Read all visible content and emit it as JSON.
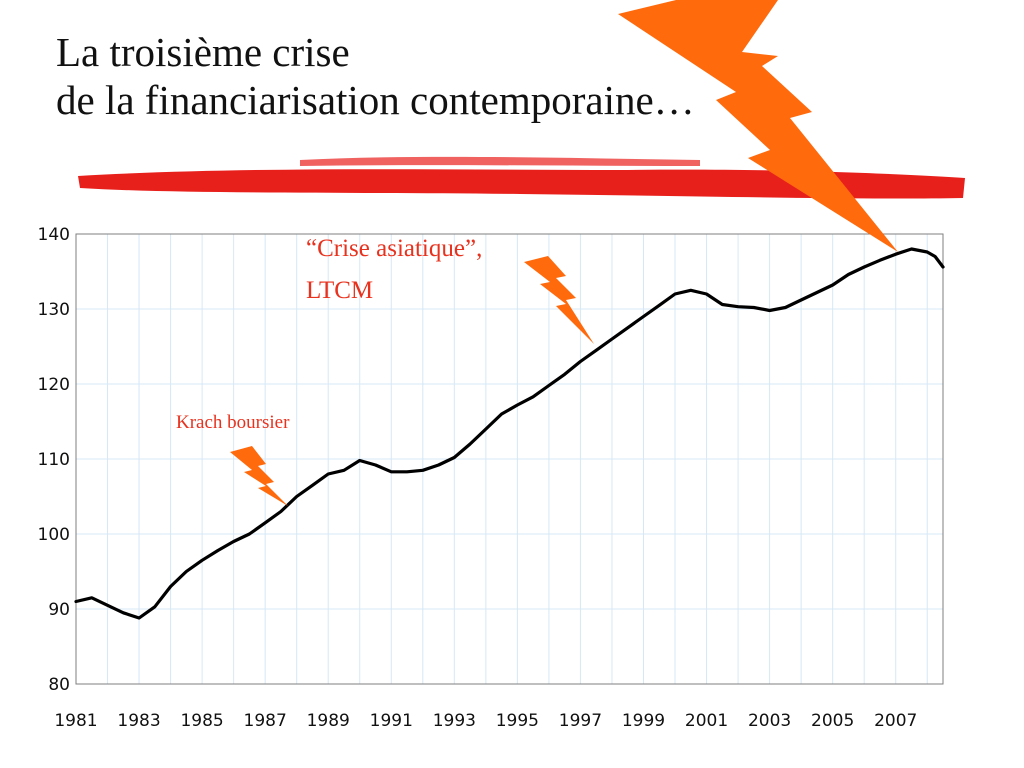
{
  "slide": {
    "title_line1": "La troisième crise",
    "title_line2": "de la financiarisation contemporaine…"
  },
  "colors": {
    "title": "#111111",
    "brush_stroke": "#e8201c",
    "lightning": "#ff6a0d",
    "annotation": "#e8321e",
    "line": "#000000",
    "grid": "#d6e8f6"
  },
  "icons": [
    "big-lightning-bolt-icon",
    "small-lightning-bolt-icon"
  ],
  "chart_data": {
    "type": "line",
    "title": "",
    "xlabel": "",
    "ylabel": "",
    "ylim": [
      80,
      140
    ],
    "yticks": [
      80,
      90,
      100,
      110,
      120,
      130,
      140
    ],
    "xlim": [
      1981,
      2008.5
    ],
    "xtick_labels": [
      "1981",
      "1983",
      "1985",
      "1987",
      "1989",
      "1991",
      "1993",
      "1995",
      "1997",
      "1999",
      "2001",
      "2003",
      "2005",
      "2007"
    ],
    "grid": true,
    "legend": "none",
    "x": [
      1981.0,
      1981.5,
      1982.0,
      1982.5,
      1983.0,
      1983.5,
      1984.0,
      1984.5,
      1985.0,
      1985.5,
      1986.0,
      1986.5,
      1987.0,
      1987.5,
      1988.0,
      1988.5,
      1989.0,
      1989.5,
      1990.0,
      1990.5,
      1991.0,
      1991.5,
      1992.0,
      1992.5,
      1993.0,
      1993.5,
      1994.0,
      1994.5,
      1995.0,
      1995.5,
      1996.0,
      1996.5,
      1997.0,
      1997.5,
      1998.0,
      1998.5,
      1999.0,
      1999.5,
      2000.0,
      2000.5,
      2001.0,
      2001.5,
      2002.0,
      2002.5,
      2003.0,
      2003.5,
      2004.0,
      2004.5,
      2005.0,
      2005.5,
      2006.0,
      2006.5,
      2007.0,
      2007.5,
      2008.0,
      2008.25,
      2008.5
    ],
    "series": [
      {
        "values": [
          91.0,
          91.5,
          90.5,
          89.5,
          88.8,
          90.3,
          93.0,
          95.0,
          96.5,
          97.8,
          99.0,
          100.0,
          101.5,
          103.0,
          105.0,
          106.5,
          108.0,
          108.5,
          109.8,
          109.2,
          108.3,
          108.3,
          108.5,
          109.2,
          110.2,
          112.0,
          114.0,
          116.0,
          117.2,
          118.3,
          119.8,
          121.3,
          123.0,
          124.5,
          126.0,
          127.5,
          129.0,
          130.5,
          132.0,
          132.5,
          132.0,
          130.6,
          130.3,
          130.2,
          129.8,
          130.2,
          131.2,
          132.2,
          133.2,
          134.6,
          135.6,
          136.5,
          137.3,
          138.0,
          137.6,
          137.0,
          135.6
        ]
      }
    ],
    "annotations": [
      {
        "label_lines": [
          "“Crise asiatique”,",
          "LTCM"
        ],
        "x": 1997.8,
        "y": 123.0
      },
      {
        "label_lines": [
          "Krach boursier"
        ],
        "x": 1987.8,
        "y": 103.3
      }
    ]
  }
}
